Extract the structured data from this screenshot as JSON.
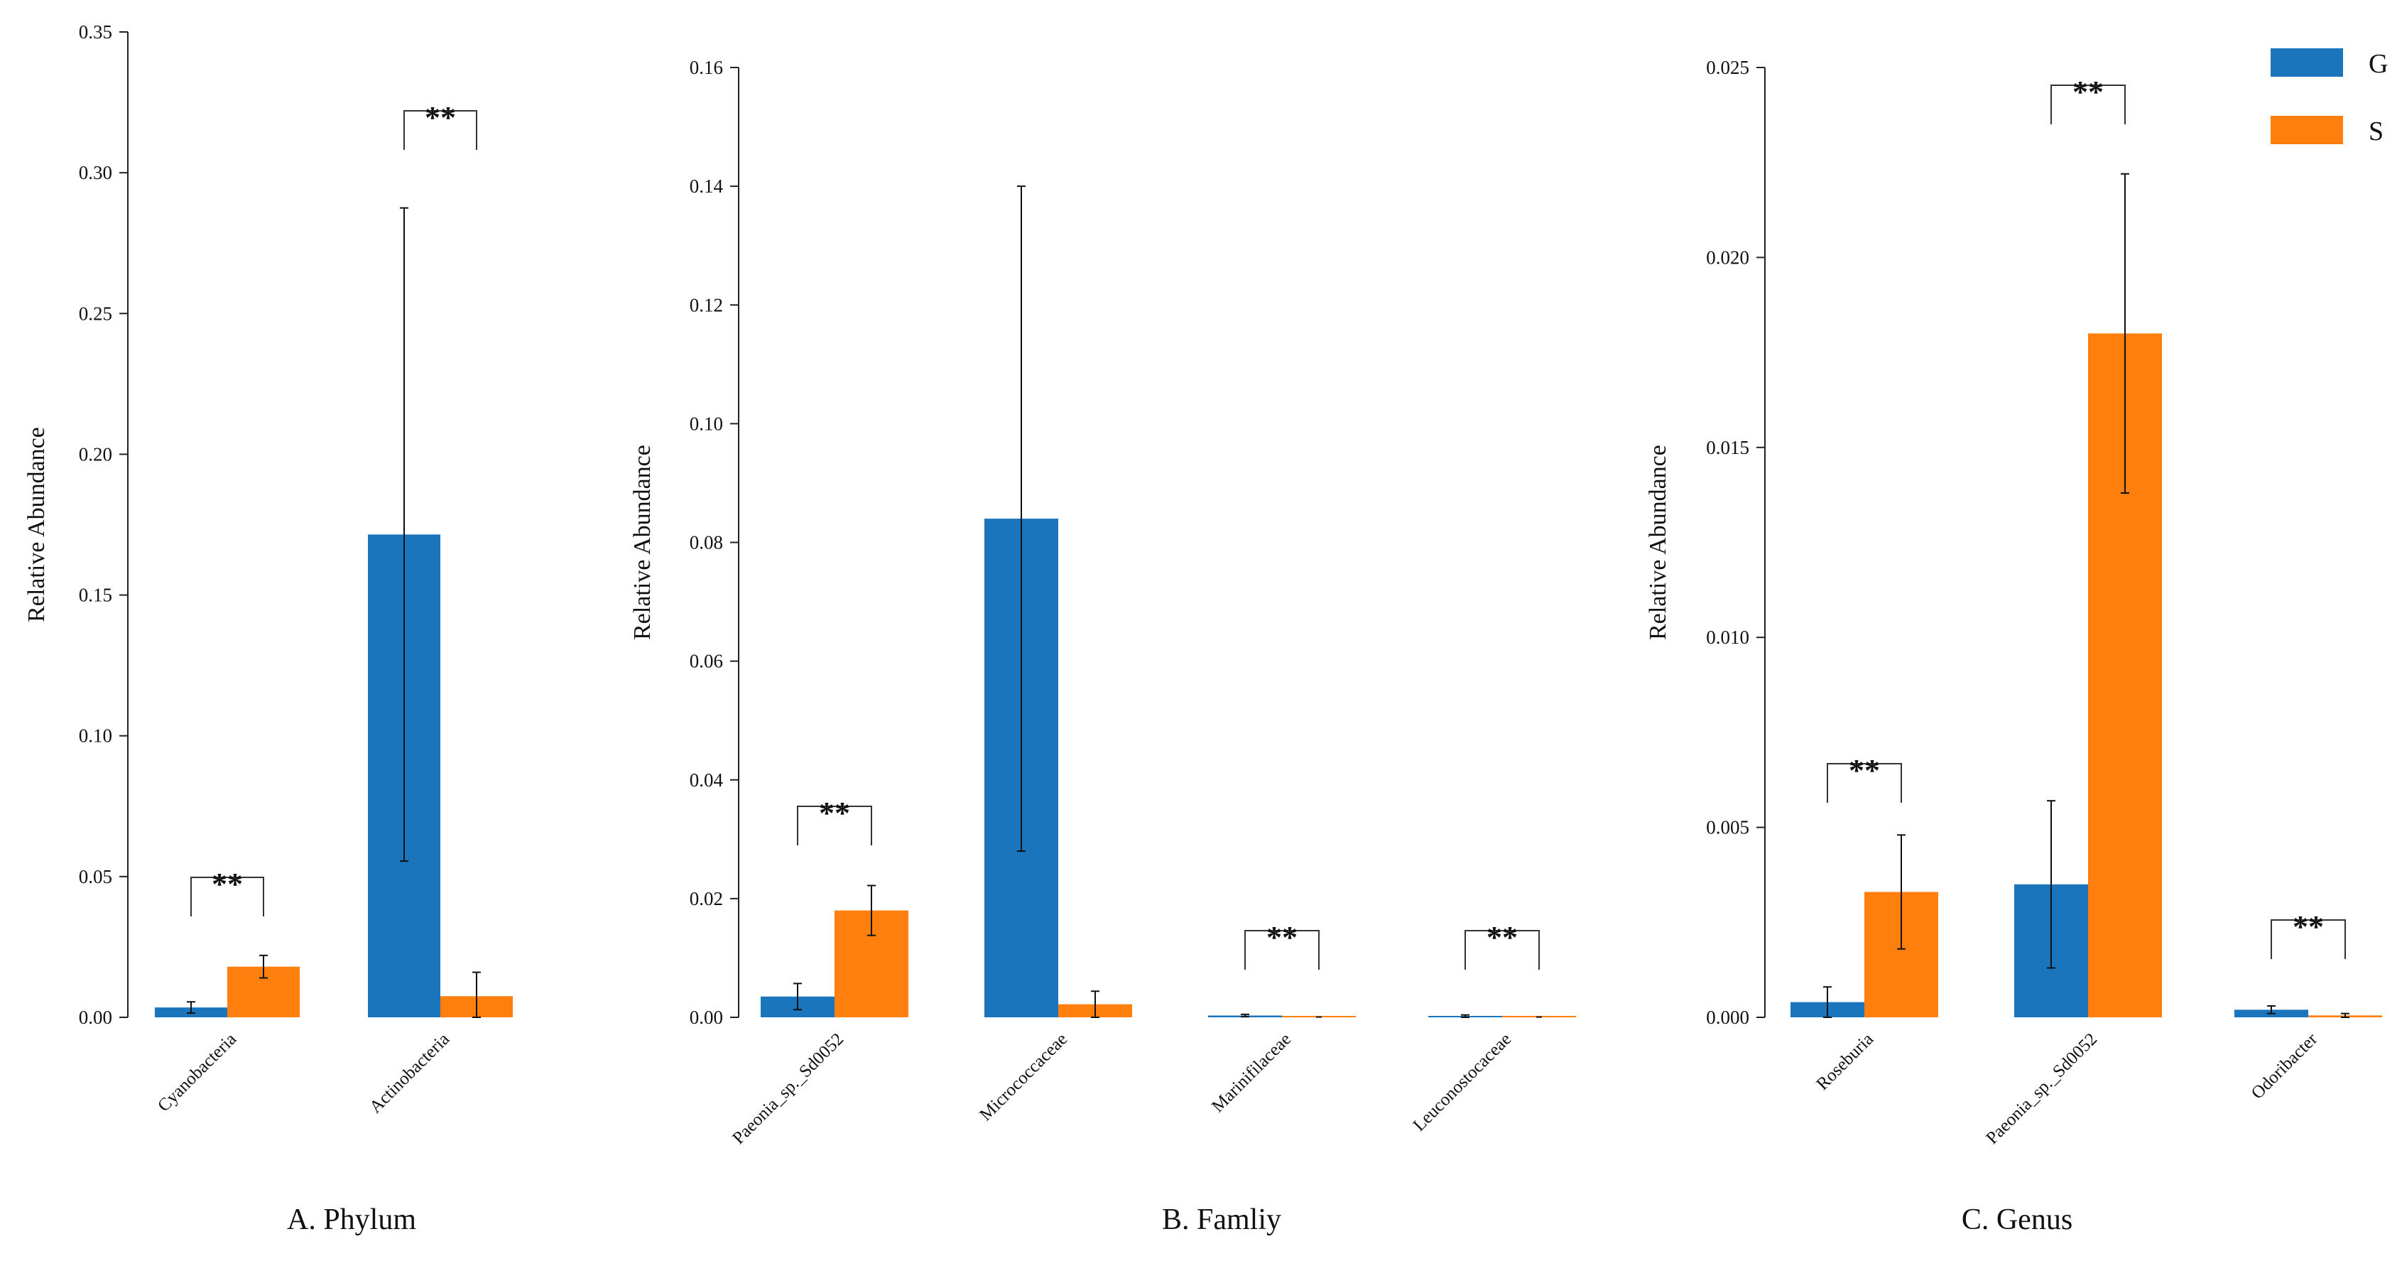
{
  "colors": {
    "G": "#1a75bc",
    "S": "#ff7f0e"
  },
  "legend": [
    {
      "label": "G",
      "color": "#1a75bc"
    },
    {
      "label": "S",
      "color": "#ff7f0e"
    }
  ],
  "chart_data": [
    {
      "type": "bar",
      "caption": "A. Phylum",
      "ylabel": "Relative Abundance",
      "ylim": [
        0,
        0.35
      ],
      "yticks": [
        "0.00",
        "0.05",
        "0.10",
        "0.15",
        "0.20",
        "0.25",
        "0.30",
        "0.35"
      ],
      "categories": [
        "Cyanobacteria",
        "Actinobacteria"
      ],
      "series": [
        {
          "name": "G",
          "values": [
            0.0035,
            0.1715
          ],
          "errors": [
            0.002,
            0.116
          ]
        },
        {
          "name": "S",
          "values": [
            0.018,
            0.0075
          ],
          "errors": [
            0.004,
            0.0085
          ]
        }
      ],
      "significance": [
        "**",
        "**"
      ]
    },
    {
      "type": "bar",
      "caption": "B. Famliy",
      "ylabel": "Relative Abundance",
      "ylim": [
        0,
        0.16
      ],
      "yticks": [
        "0.00",
        "0.02",
        "0.04",
        "0.06",
        "0.08",
        "0.10",
        "0.12",
        "0.14",
        "0.16"
      ],
      "categories": [
        "Paeonia_sp._Sd0052",
        "Micrococcaceae",
        "Marinifilaceae",
        "Leuconostocaceae"
      ],
      "series": [
        {
          "name": "G",
          "values": [
            0.0035,
            0.084,
            0.0003,
            0.0002
          ],
          "errors": [
            0.0022,
            0.056,
            0.0002,
            0.0002
          ]
        },
        {
          "name": "S",
          "values": [
            0.018,
            0.0022,
            5e-05,
            5e-05
          ],
          "errors": [
            0.0042,
            0.0022,
            0.0001,
            0.0001
          ]
        }
      ],
      "significance": [
        "**",
        "",
        "**",
        "**"
      ]
    },
    {
      "type": "bar",
      "caption": "C. Genus",
      "ylabel": "Relative Abundance",
      "ylim": [
        0,
        0.025
      ],
      "yticks": [
        "0.000",
        "0.005",
        "0.010",
        "0.015",
        "0.020",
        "0.025"
      ],
      "categories": [
        "Roseburia",
        "Paeonia_sp._Sd0052",
        "Odoribacter"
      ],
      "series": [
        {
          "name": "G",
          "values": [
            0.0004,
            0.0035,
            0.0002
          ],
          "errors": [
            0.0004,
            0.0022,
            0.0001
          ]
        },
        {
          "name": "S",
          "values": [
            0.0033,
            0.018,
            5e-05
          ],
          "errors": [
            0.0015,
            0.0042,
            5e-05
          ]
        }
      ],
      "significance": [
        "**",
        "**",
        "**"
      ]
    }
  ]
}
